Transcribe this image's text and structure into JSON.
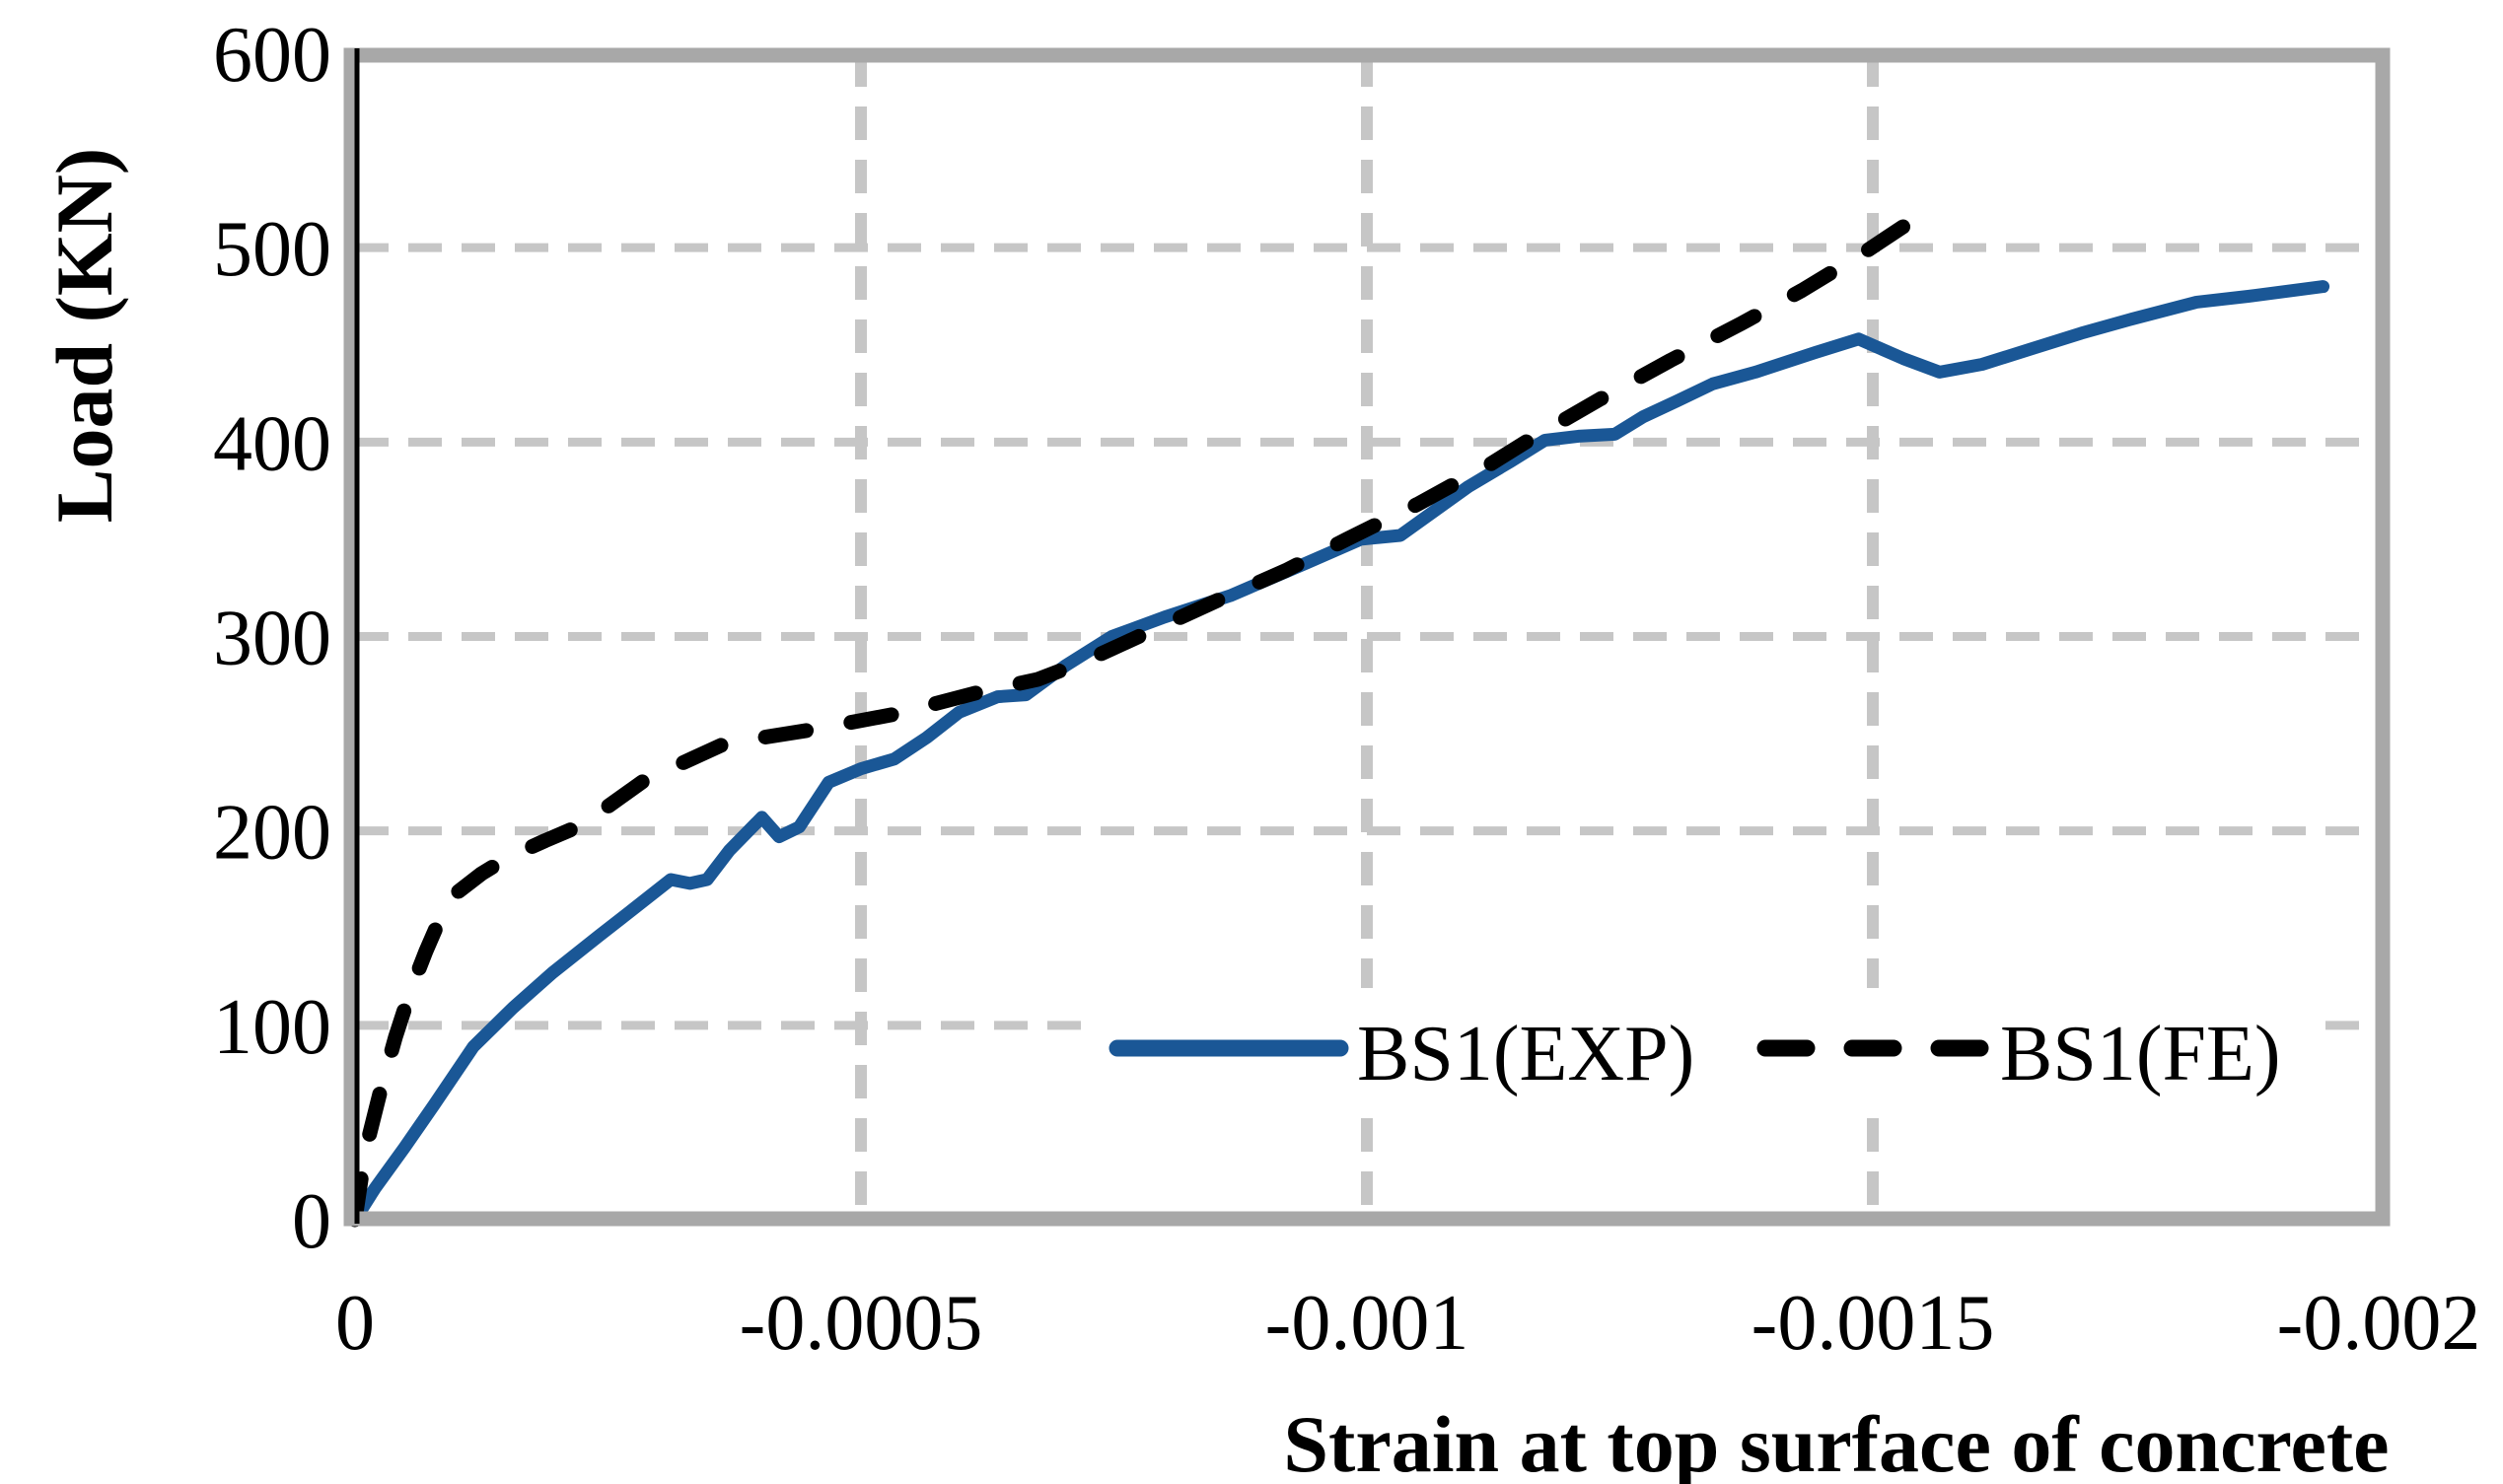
{
  "chart_data": {
    "type": "line",
    "title": "",
    "xlabel": "Strain at top surface of concrete",
    "ylabel": "Load (KN)",
    "xlim": [
      0,
      -0.002
    ],
    "ylim": [
      0,
      600
    ],
    "grid": true,
    "legend_position": "inside-bottom-center",
    "x_ticks": [
      {
        "value": 0,
        "label": "0"
      },
      {
        "value": -0.0005,
        "label": "-0.0005"
      },
      {
        "value": -0.001,
        "label": "-0.001"
      },
      {
        "value": -0.0015,
        "label": "-0.0015"
      },
      {
        "value": -0.002,
        "label": "-0.002"
      }
    ],
    "y_ticks": [
      {
        "value": 0,
        "label": "0"
      },
      {
        "value": 100,
        "label": "100"
      },
      {
        "value": 200,
        "label": "200"
      },
      {
        "value": 300,
        "label": "300"
      },
      {
        "value": 400,
        "label": "400"
      },
      {
        "value": 500,
        "label": "500"
      },
      {
        "value": 600,
        "label": "600"
      }
    ],
    "series": [
      {
        "name": "BS1(EXP)",
        "style": "solid",
        "color": "#1A5796",
        "points": [
          [
            0,
            0
          ],
          [
            -1.95e-05,
            16
          ],
          [
            -4.87e-05,
            37
          ],
          [
            -7.8e-05,
            59
          ],
          [
            -0.000117,
            89
          ],
          [
            -0.000156,
            109
          ],
          [
            -0.000195,
            127
          ],
          [
            -0.000241,
            146
          ],
          [
            -0.000273,
            159
          ],
          [
            -0.000312,
            175
          ],
          [
            -0.000331,
            173
          ],
          [
            -0.000348,
            175
          ],
          [
            -0.00037,
            190
          ],
          [
            -0.000402,
            207
          ],
          [
            -0.000419,
            197
          ],
          [
            -0.000439,
            202
          ],
          [
            -0.000468,
            225
          ],
          [
            -0.0005,
            232
          ],
          [
            -0.000533,
            237
          ],
          [
            -0.000565,
            248
          ],
          [
            -0.000597,
            261
          ],
          [
            -0.000635,
            269
          ],
          [
            -0.000663,
            270
          ],
          [
            -0.000702,
            285
          ],
          [
            -0.000748,
            300
          ],
          [
            -0.0008,
            310
          ],
          [
            -0.000865,
            321
          ],
          [
            -0.000941,
            338
          ],
          [
            -0.000994,
            350
          ],
          [
            -0.001033,
            352
          ],
          [
            -0.0011,
            377
          ],
          [
            -0.001142,
            390
          ],
          [
            -0.001176,
            401
          ],
          [
            -0.001209,
            403
          ],
          [
            -0.001245,
            404
          ],
          [
            -0.001273,
            413
          ],
          [
            -0.001306,
            421
          ],
          [
            -0.001342,
            430
          ],
          [
            -0.001384,
            436
          ],
          [
            -0.001443,
            446
          ],
          [
            -0.001486,
            453
          ],
          [
            -0.00153,
            443
          ],
          [
            -0.001566,
            436
          ],
          [
            -0.001608,
            440
          ],
          [
            -0.001657,
            448
          ],
          [
            -0.001706,
            456
          ],
          [
            -0.001754,
            463
          ],
          [
            -0.00182,
            472
          ],
          [
            -0.001871,
            475
          ],
          [
            -0.001945,
            480
          ]
        ]
      },
      {
        "name": "BS1(FE)",
        "style": "dashed",
        "color": "#000000",
        "points": [
          [
            0,
            0
          ],
          [
            -1e-05,
            35
          ],
          [
            -2.5e-05,
            66
          ],
          [
            -4e-05,
            94
          ],
          [
            -5.5e-05,
            118
          ],
          [
            -7e-05,
            138
          ],
          [
            -8.5e-05,
            156
          ],
          [
            -0.0001,
            168
          ],
          [
            -0.000125,
            178
          ],
          [
            -0.00015,
            186
          ],
          [
            -0.000188,
            195
          ],
          [
            -0.000224,
            203
          ],
          [
            -0.000286,
            226
          ],
          [
            -0.000366,
            245
          ],
          [
            -0.000451,
            252
          ],
          [
            -0.000533,
            260
          ],
          [
            -0.000614,
            271
          ],
          [
            -0.000675,
            278
          ],
          [
            -0.00072,
            287
          ],
          [
            -0.000762,
            297
          ],
          [
            -0.00085,
            318
          ],
          [
            -0.00092,
            334
          ],
          [
            -0.00098,
            350
          ],
          [
            -0.00105,
            368
          ],
          [
            -0.00112,
            388
          ],
          [
            -0.00116,
            401
          ],
          [
            -0.00123,
            422
          ],
          [
            -0.0013,
            442
          ],
          [
            -0.00137,
            461
          ],
          [
            -0.00143,
            478
          ],
          [
            -0.00149,
            497
          ],
          [
            -0.001545,
            516
          ]
        ]
      }
    ]
  },
  "legend": {
    "exp_label": "BS1(EXP)",
    "fe_label": "BS1(FE)"
  },
  "colors": {
    "exp_line": "#1A5796",
    "fe_line": "#000000",
    "gridline": "#C6C6C6",
    "frame": "#A8A8A8",
    "axis_line": "#000000",
    "background": "#FFFFFF",
    "text": "#000000"
  }
}
